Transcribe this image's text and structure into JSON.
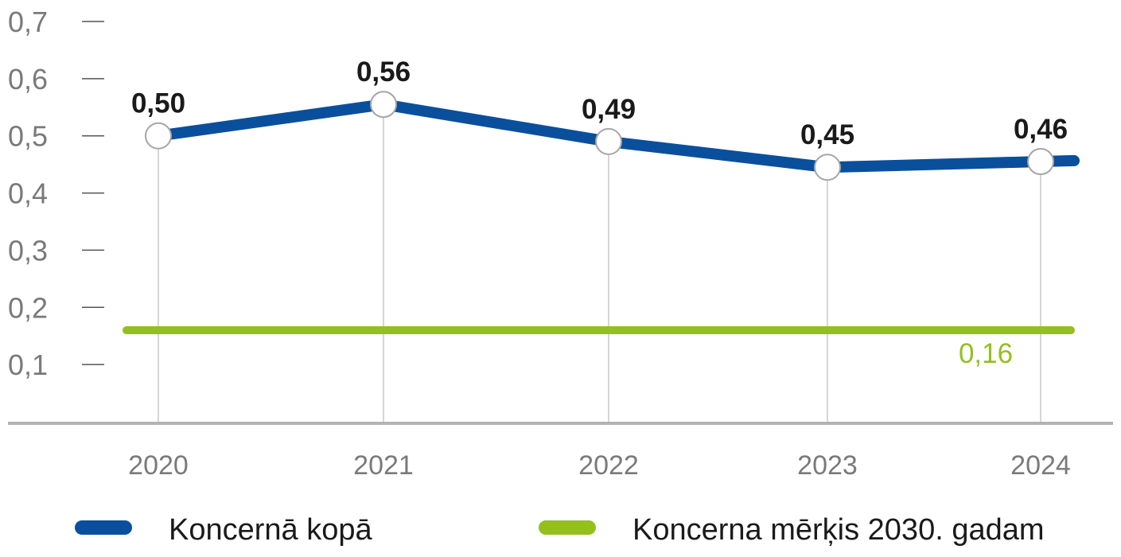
{
  "chart_data": {
    "type": "line",
    "title": "",
    "xlabel": "",
    "ylabel": "",
    "categories": [
      "2020",
      "2021",
      "2022",
      "2023",
      "2024"
    ],
    "ylim": [
      0,
      0.7
    ],
    "y_ticks": [
      0.1,
      0.2,
      0.3,
      0.4,
      0.5,
      0.6,
      0.7
    ],
    "y_tick_labels": [
      "0,1",
      "0,2",
      "0,3",
      "0,4",
      "0,5",
      "0,6",
      "0,7"
    ],
    "grid": false,
    "legend_position": "bottom",
    "series": [
      {
        "name": "Koncernā kopā",
        "values": [
          0.5,
          0.555,
          0.49,
          0.445,
          0.455
        ],
        "data_labels": [
          "0,50",
          "0,56",
          "0,49",
          "0,45",
          "0,46"
        ],
        "color": "#0a4f9c"
      },
      {
        "name": "Koncerna mērķis 2030. gadam",
        "type": "reference-line",
        "value": 0.16,
        "data_label": "0,16",
        "color": "#94bf1e"
      }
    ],
    "colors": {
      "axis_text": "#7a7a7a",
      "tick": "#555555",
      "baseline": "#b3b3b3",
      "drop_line": "#c8c8c8",
      "marker_fill": "#ffffff",
      "marker_stroke": "#a6a6a6",
      "data_label": "#1a1a1a",
      "legend_text": "#1a1a1a"
    }
  }
}
